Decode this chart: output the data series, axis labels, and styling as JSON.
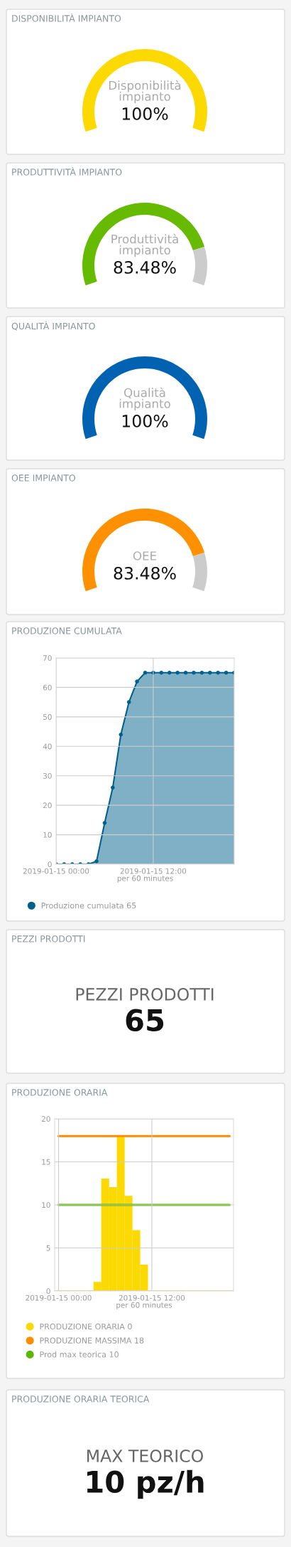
{
  "chart_data": [
    {
      "type": "pie",
      "title": "DISPONIBILITÀ IMPIANTO",
      "categories": [
        "Disponibilità impianto",
        null
      ],
      "values": [
        100,
        0
      ],
      "colors": [
        "#fcd900",
        "#cccccc"
      ],
      "value_labels": [
        "100%",
        null
      ]
    },
    {
      "type": "donut",
      "title": "PRODUTTIVITÀ IMPIANTO",
      "categories": [
        "Produttività impianto",
        null
      ],
      "values": [
        83.48,
        16.52
      ],
      "colors": [
        "#66bb00",
        "#cccccc"
      ],
      "value_labels": [
        "83.48%",
        null
      ]
    },
    {
      "type": "pie",
      "title": "QUALITÀ IMPIANTO",
      "categories": [
        "Qualità impianto",
        null
      ],
      "values": [
        100,
        0
      ],
      "colors": [
        "#0062b0",
        "#cccccc"
      ],
      "value_labels": [
        "100%",
        null
      ]
    },
    {
      "type": "donut",
      "title": "OEE IMPIANTO",
      "categories": [
        "OEE",
        null
      ],
      "values": [
        83.48,
        16.52
      ],
      "colors": [
        "#ff9100",
        "#cccccc"
      ],
      "value_labels": [
        "83.48%",
        null
      ]
    },
    {
      "type": "area",
      "title": "PRODUZIONE CUMULATA",
      "xlabel": "per 60 minutes",
      "x": [
        "2019-01-15T00:00",
        "2019-01-15T01:00",
        "2019-01-15T02:00",
        "2019-01-15T03:00",
        "2019-01-15T04:00",
        "2019-01-15T05:00",
        "2019-01-15T06:00",
        "2019-01-15T07:00",
        "2019-01-15T08:00",
        "2019-01-15T09:00",
        "2019-01-15T10:00",
        "2019-01-15T11:00",
        "2019-01-15T12:00",
        "2019-01-15T13:00",
        "2019-01-15T14:00",
        "2019-01-15T15:00",
        "2019-01-15T16:00",
        "2019-01-15T17:00",
        "2019-01-15T18:00",
        "2019-01-15T19:00",
        "2019-01-15T20:00",
        "2019-01-15T21:00",
        "2019-01-15T22:00"
      ],
      "series": [
        {
          "name": "Produzione cumulata 65",
          "color": "#00628c",
          "values": [
            0,
            0,
            0,
            0,
            0,
            1,
            14,
            26,
            44,
            55,
            62,
            65,
            65,
            65,
            65,
            65,
            65,
            65,
            65,
            65,
            65,
            65,
            65
          ]
        }
      ],
      "xlim": [
        "2019-01-15T00:00",
        "2019-01-15T22:00"
      ],
      "xticks": [
        {
          "value": "2019-01-15T00:00",
          "label": "2019-01-15 00:00"
        },
        {
          "value": "2019-01-15T12:00",
          "label": "2019-01-15 12:00"
        }
      ],
      "ylim": [
        0,
        70
      ],
      "yticks": [
        0,
        10,
        20,
        30,
        40,
        50,
        60,
        70
      ],
      "grid": true,
      "legend": "bottom",
      "marker": "circle"
    },
    {
      "type": "other",
      "title": "PEZZI PRODOTTI",
      "annotations": [
        "PEZZI PRODOTTI",
        "65"
      ]
    },
    {
      "type": "bar",
      "title": "PRODUZIONE ORARIA",
      "xlabel": "per 60 minutes",
      "x": [
        "2019-01-15T00:00",
        "2019-01-15T01:00",
        "2019-01-15T02:00",
        "2019-01-15T03:00",
        "2019-01-15T04:00",
        "2019-01-15T05:00",
        "2019-01-15T06:00",
        "2019-01-15T07:00",
        "2019-01-15T08:00",
        "2019-01-15T09:00",
        "2019-01-15T10:00",
        "2019-01-15T11:00",
        "2019-01-15T12:00",
        "2019-01-15T13:00",
        "2019-01-15T14:00",
        "2019-01-15T15:00",
        "2019-01-15T16:00",
        "2019-01-15T17:00",
        "2019-01-15T18:00",
        "2019-01-15T19:00",
        "2019-01-15T20:00",
        "2019-01-15T21:00",
        "2019-01-15T22:00"
      ],
      "series": [
        {
          "name": "PRODUZIONE ORARIA 0",
          "type": "bar",
          "color": "#fcd900",
          "values": [
            0,
            0,
            0,
            0,
            0,
            1,
            13,
            12,
            18,
            11,
            7,
            3,
            0,
            0,
            0,
            0,
            0,
            0,
            0,
            0,
            0,
            0,
            0
          ]
        },
        {
          "name": "PRODUZIONE MASSIMA 18",
          "type": "line",
          "color": "#ff8c00",
          "values": [
            18,
            18,
            18,
            18,
            18,
            18,
            18,
            18,
            18,
            18,
            18,
            18,
            18,
            18,
            18,
            18,
            18,
            18,
            18,
            18,
            18,
            18,
            18
          ]
        },
        {
          "name": "Prod max teorica 10",
          "type": "line",
          "color": "#5cb800",
          "values": [
            10,
            10,
            10,
            10,
            10,
            10,
            10,
            10,
            10,
            10,
            10,
            10,
            10,
            10,
            10,
            10,
            10,
            10,
            10,
            10,
            10,
            10,
            10
          ]
        }
      ],
      "xlim": [
        "2019-01-14T23:30",
        "2019-01-15T22:30"
      ],
      "xticks": [
        {
          "value": "2019-01-15T00:00",
          "label": "2019-01-15 00:00"
        },
        {
          "value": "2019-01-15T12:00",
          "label": "2019-01-15 12:00"
        }
      ],
      "ylim": [
        0,
        20
      ],
      "yticks": [
        0,
        5,
        10,
        15,
        20
      ],
      "grid": true,
      "legend": "bottom"
    },
    {
      "type": "other",
      "title": "PRODUZIONE ORARIA TEORICA",
      "annotations": [
        "MAX TEORICO",
        "10 pz/h"
      ]
    }
  ]
}
